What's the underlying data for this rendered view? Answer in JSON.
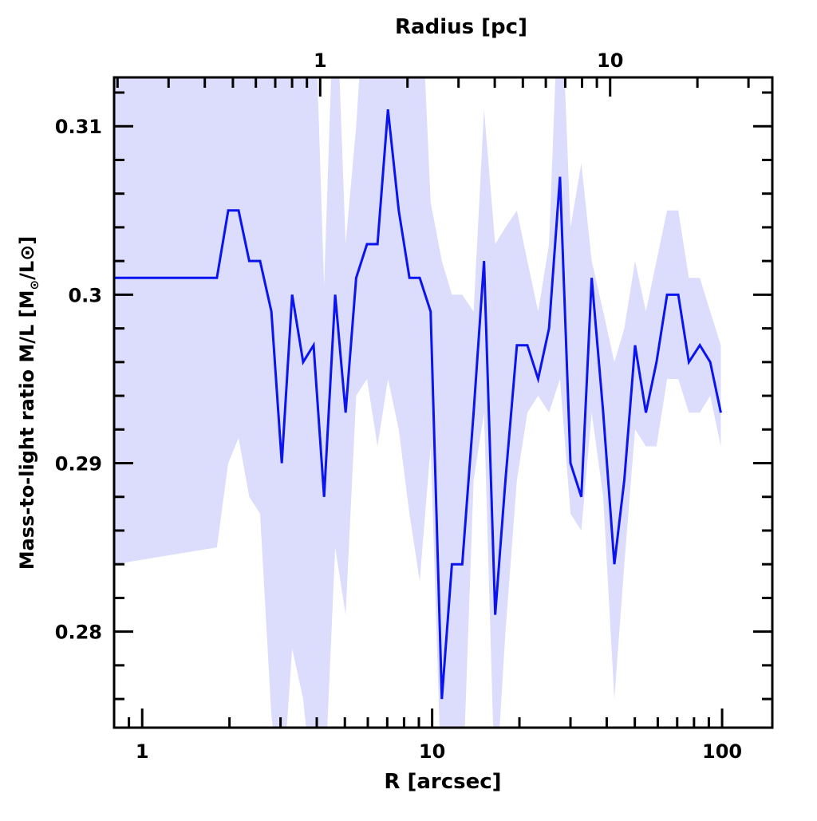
{
  "chart_data": {
    "type": "line",
    "xlabel": "R [arcsec]",
    "ylabel": "Mass-to-light ratio M/L [M",
    "ylabel_sub": "⊙",
    "ylabel_mid": "/L⊙]",
    "top_xlabel": "Radius [pc]",
    "xscale": "log",
    "xlim": [
      0.8,
      149
    ],
    "ylim": [
      0.2743,
      0.3129
    ],
    "x_ticks": [
      1,
      10,
      100
    ],
    "x_tick_labels": [
      "1",
      "10",
      "100"
    ],
    "y_ticks": [
      0.28,
      0.29,
      0.3,
      0.31
    ],
    "y_tick_labels": [
      "0.28",
      "0.29",
      "0.3",
      "0.31"
    ],
    "y_minor_step": 0.002,
    "top_axis": {
      "ticks": [
        1,
        10
      ],
      "tick_labels": [
        "1",
        "10"
      ],
      "arcsec_per_pc": 4.11
    },
    "grid": false,
    "colors": {
      "line": "#0a14f0",
      "band": "#dcdcfc"
    },
    "series": [
      {
        "name": "M/L",
        "x": [
          0.801,
          1.81,
          1.98,
          2.15,
          2.34,
          2.55,
          2.79,
          3.03,
          3.29,
          3.59,
          3.9,
          4.24,
          4.63,
          5.03,
          5.47,
          5.96,
          6.48,
          7.04,
          7.67,
          8.35,
          9.06,
          9.88,
          10.8,
          11.7,
          12.7,
          13.9,
          15.1,
          16.5,
          17.9,
          19.6,
          21.3,
          23.2,
          25.3,
          27.6,
          30.0,
          32.7,
          35.5,
          38.9,
          42.5,
          46.0,
          50.1,
          54.6,
          59.4,
          64.6,
          70.6,
          76.8,
          83.8,
          91.0,
          99.0
        ],
        "values": [
          0.301,
          0.301,
          0.305,
          0.305,
          0.302,
          0.302,
          0.299,
          0.29,
          0.3,
          0.296,
          0.297,
          0.288,
          0.3,
          0.293,
          0.301,
          0.303,
          0.303,
          0.311,
          0.305,
          0.301,
          0.301,
          0.299,
          0.276,
          0.284,
          0.284,
          0.293,
          0.302,
          0.281,
          0.289,
          0.297,
          0.297,
          0.295,
          0.298,
          0.307,
          0.29,
          0.288,
          0.301,
          0.293,
          0.284,
          0.289,
          0.297,
          0.293,
          0.296,
          0.3,
          0.3,
          0.296,
          0.297,
          0.296,
          0.293
        ],
        "upper": [
          0.32,
          0.32,
          0.32,
          0.32,
          0.32,
          0.32,
          0.32,
          0.32,
          0.32,
          0.32,
          0.32,
          0.3005,
          0.32,
          0.303,
          0.31,
          0.32,
          0.32,
          0.32,
          0.32,
          0.32,
          0.32,
          0.3055,
          0.302,
          0.3,
          0.3,
          0.299,
          0.311,
          0.303,
          0.304,
          0.305,
          0.302,
          0.299,
          0.303,
          0.32,
          0.304,
          0.3078,
          0.302,
          0.299,
          0.296,
          0.298,
          0.302,
          0.299,
          0.302,
          0.305,
          0.305,
          0.301,
          0.301,
          0.299,
          0.297
        ],
        "lower": [
          0.284,
          0.285,
          0.29,
          0.2915,
          0.288,
          0.287,
          0.275,
          0.27,
          0.279,
          0.276,
          0.27,
          0.27,
          0.285,
          0.281,
          0.294,
          0.295,
          0.291,
          0.295,
          0.292,
          0.287,
          0.283,
          0.291,
          0.27,
          0.27,
          0.27,
          0.289,
          0.293,
          0.27,
          0.28,
          0.289,
          0.293,
          0.294,
          0.293,
          0.295,
          0.287,
          0.286,
          0.293,
          0.288,
          0.276,
          0.284,
          0.292,
          0.291,
          0.291,
          0.295,
          0.295,
          0.293,
          0.293,
          0.294,
          0.291
        ]
      }
    ]
  }
}
